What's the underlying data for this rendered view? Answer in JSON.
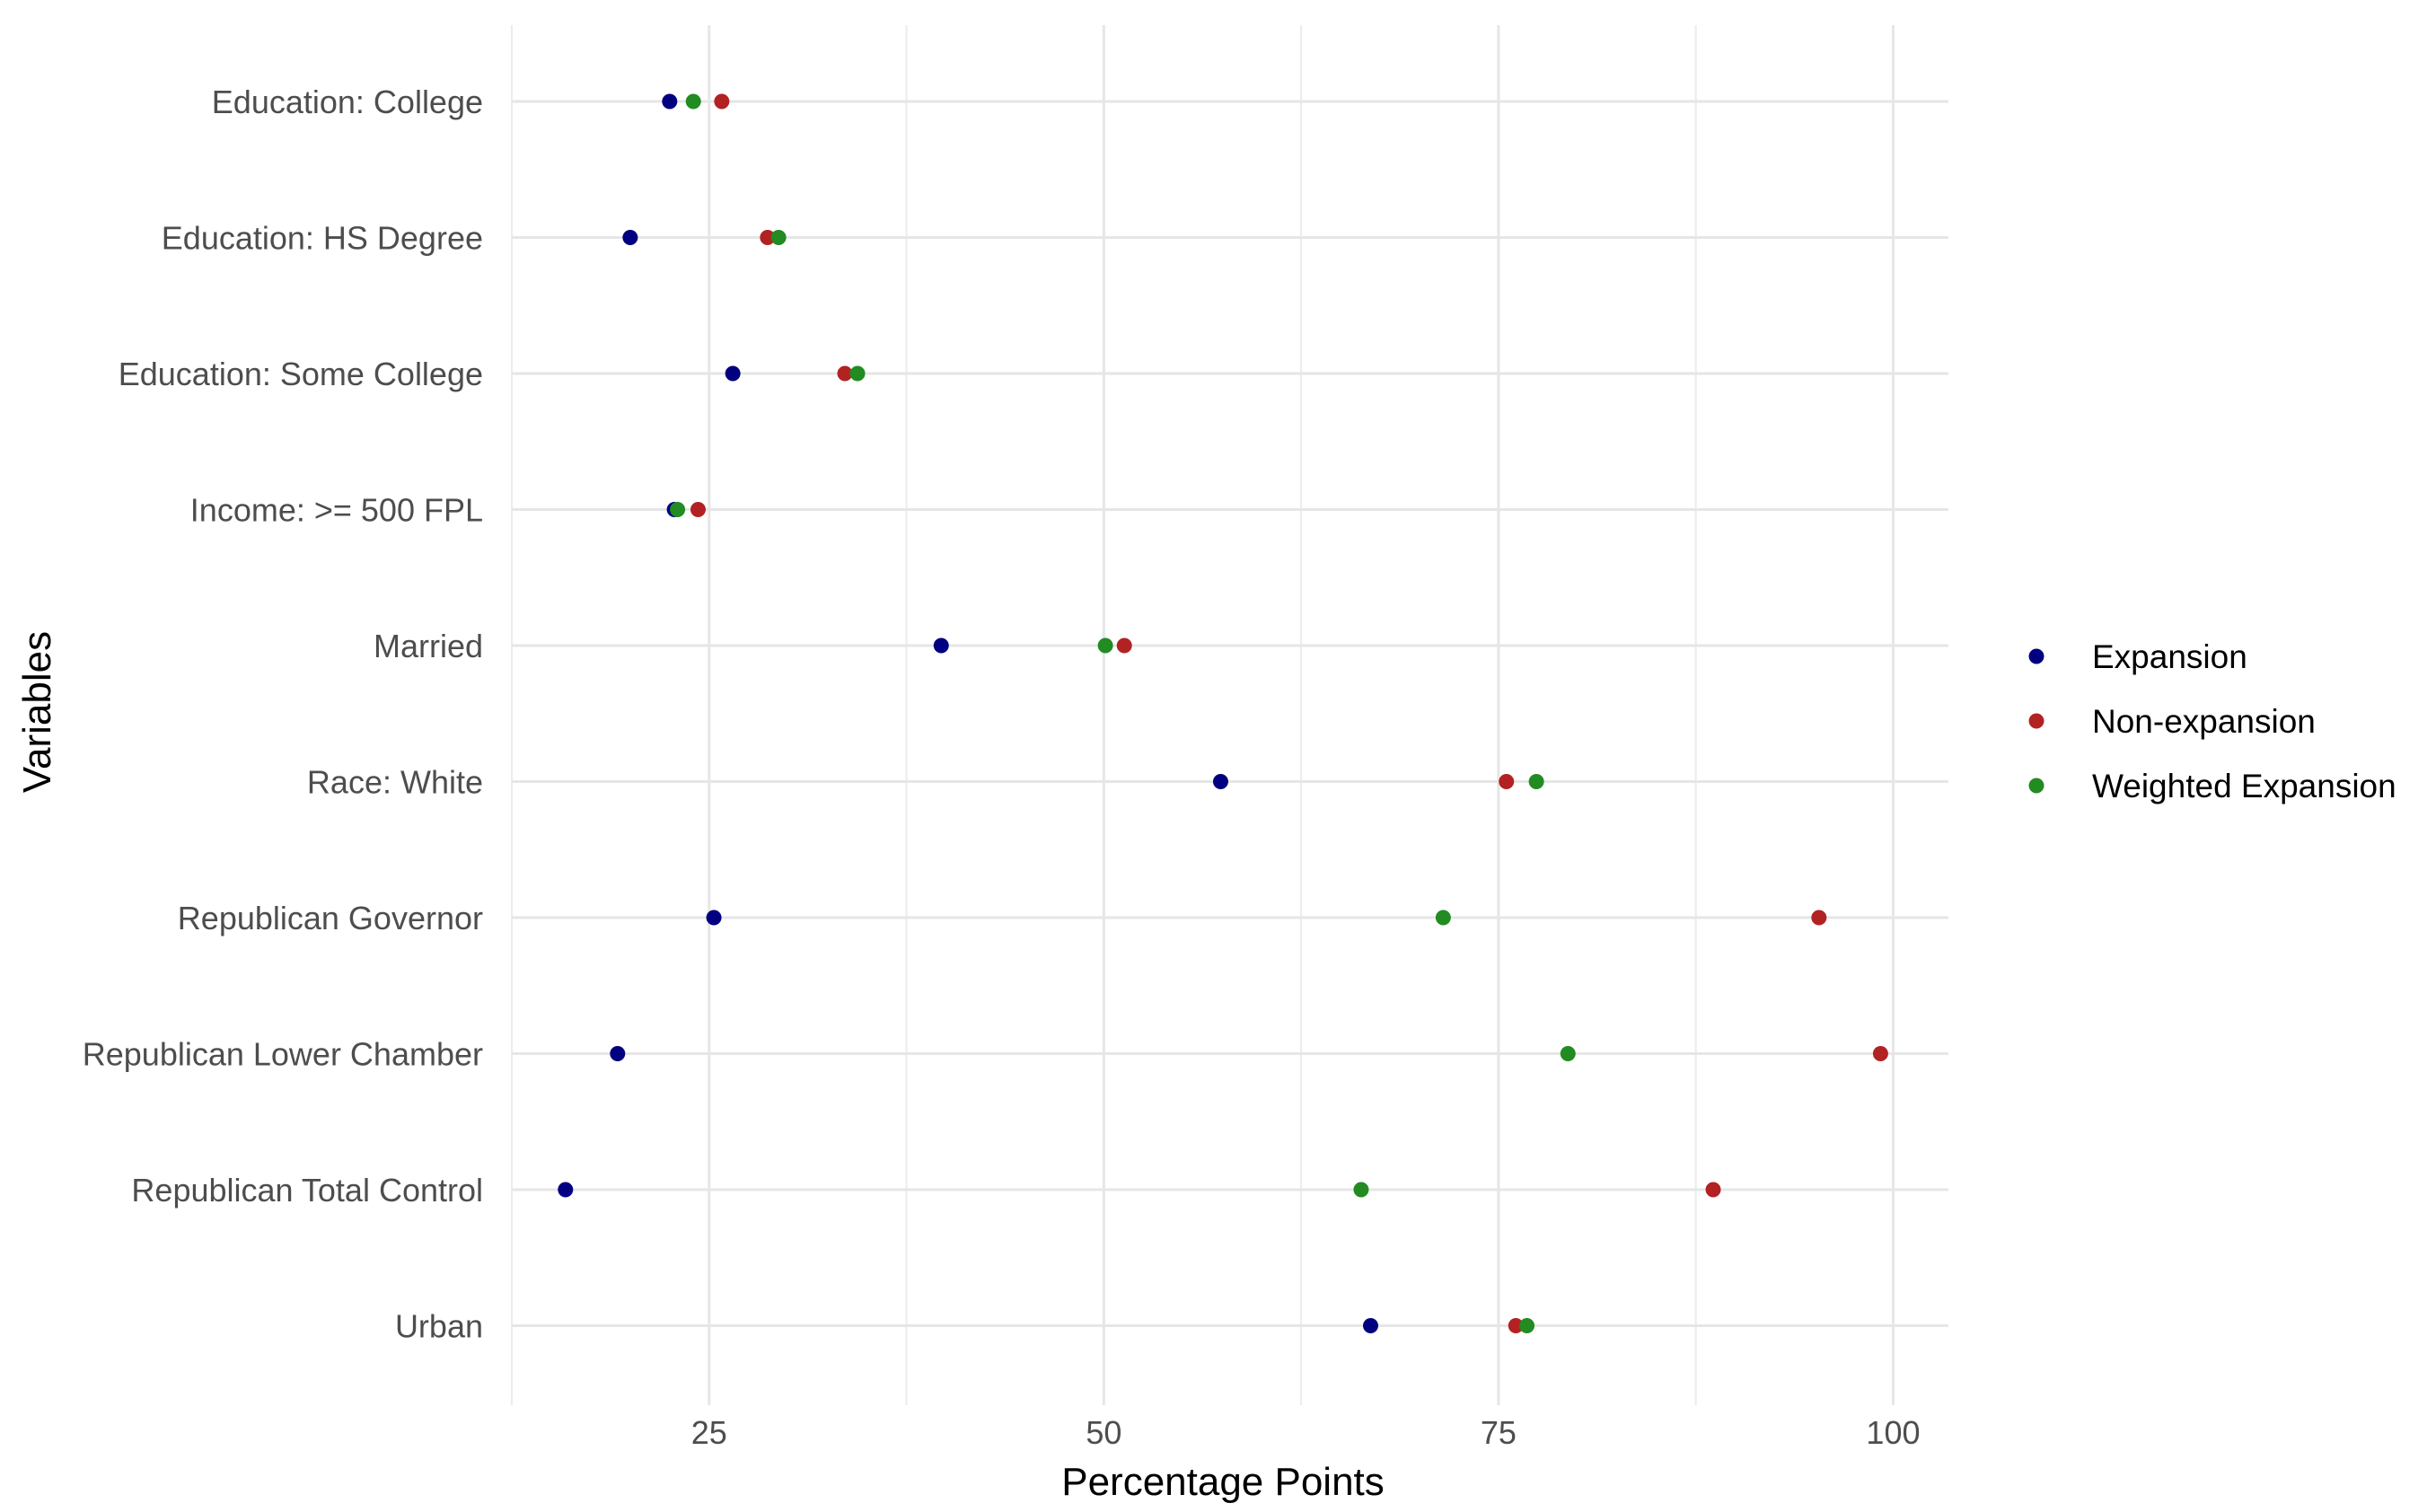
{
  "chart_data": {
    "type": "scatter",
    "title": "",
    "xlabel": "Percentage Points",
    "ylabel": "Variables",
    "xlim": [
      12.5,
      103.5
    ],
    "x_ticks": [
      25,
      50,
      75,
      100
    ],
    "x_tick_labels": [
      "25",
      "50",
      "75",
      "100"
    ],
    "grid": true,
    "legend_position": "right",
    "categories": [
      "Education: College",
      "Education: HS Degree",
      "Education: Some College",
      "Income: >= 500 FPL",
      "Married",
      "Race: White",
      "Republican Governor",
      "Republican Lower Chamber",
      "Republican Total Control",
      "Urban"
    ],
    "series": [
      {
        "name": "Expansion",
        "color": "#000080",
        "values": [
          22.5,
          20.0,
          26.5,
          22.8,
          39.7,
          57.4,
          25.3,
          19.2,
          15.9,
          66.9
        ]
      },
      {
        "name": "Non-expansion",
        "color": "#b22222",
        "values": [
          25.8,
          28.7,
          33.6,
          24.3,
          51.3,
          75.5,
          95.3,
          99.2,
          88.6,
          76.1
        ]
      },
      {
        "name": "Weighted Expansion",
        "color": "#228b22",
        "values": [
          24.0,
          29.4,
          34.4,
          23.0,
          50.1,
          77.4,
          71.5,
          79.4,
          66.3,
          76.8
        ]
      }
    ]
  }
}
